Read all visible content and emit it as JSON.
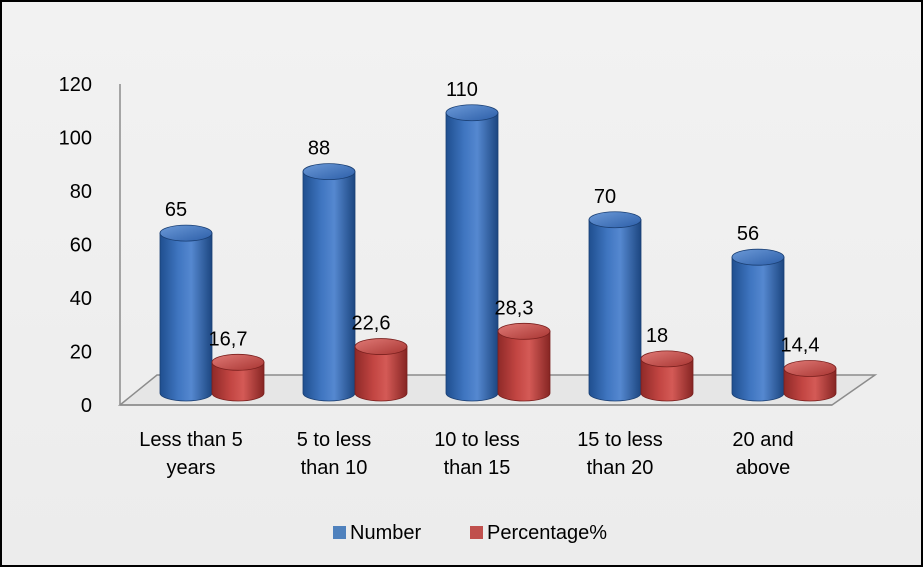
{
  "chart_data": {
    "type": "bar",
    "categories": [
      [
        "Less than 5",
        "years"
      ],
      [
        "5 to less",
        "than 10"
      ],
      [
        "10 to less",
        "than 15"
      ],
      [
        "15 to less",
        "than 20"
      ],
      [
        "20 and",
        "above"
      ]
    ],
    "series": [
      {
        "name": "Number",
        "values": [
          65,
          88,
          110,
          70,
          56
        ],
        "labels": [
          "65",
          "88",
          "110",
          "70",
          "56"
        ],
        "color": "#4F81BD"
      },
      {
        "name": "Percentage%",
        "values": [
          16.7,
          22.6,
          28.3,
          18,
          14.4
        ],
        "labels": [
          "16,7",
          "22,6",
          "28,3",
          "18",
          "14,4"
        ],
        "color": "#C0504D"
      }
    ],
    "ylim": [
      0,
      120
    ],
    "yticks": [
      "0",
      "20",
      "40",
      "60",
      "80",
      "100",
      "120"
    ],
    "ytick_values": [
      0,
      20,
      40,
      60,
      80,
      100,
      120
    ],
    "grid": false,
    "legend_position": "bottom",
    "style": "3d-cylinder"
  }
}
